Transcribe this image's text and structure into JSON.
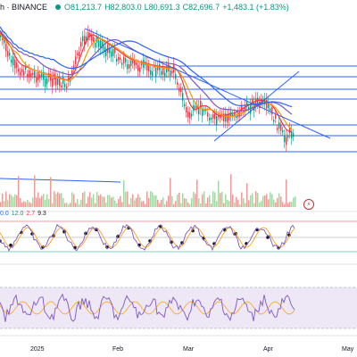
{
  "header": {
    "symbol_text": "h · BINANCE",
    "open": "O81,213.7",
    "high": "H82,803.0",
    "low": "L80,691.3",
    "close": "C82,696.7",
    "change": "+1,483.1 (+1.83%)",
    "status_color": "#089981"
  },
  "indicator_values": [
    "0.0",
    "12.0",
    "2.7",
    "9.3"
  ],
  "indicator_colors": [
    "#2962ff",
    "#089981",
    "#f23645",
    "#131722"
  ],
  "x_axis": [
    "2025",
    "Feb",
    "Mar",
    "Apr",
    "May"
  ],
  "bolt_icon": "lightning-icon",
  "colors": {
    "candle_up": "#089981",
    "candle_down": "#f23645",
    "trendline": "#2962ff",
    "ma_red": "#f23645",
    "ma_orange": "#ff9800",
    "ma_purple": "#7e57c2",
    "ma_blue": "#2962ff",
    "rsi_band": "#ede7f6"
  }
}
